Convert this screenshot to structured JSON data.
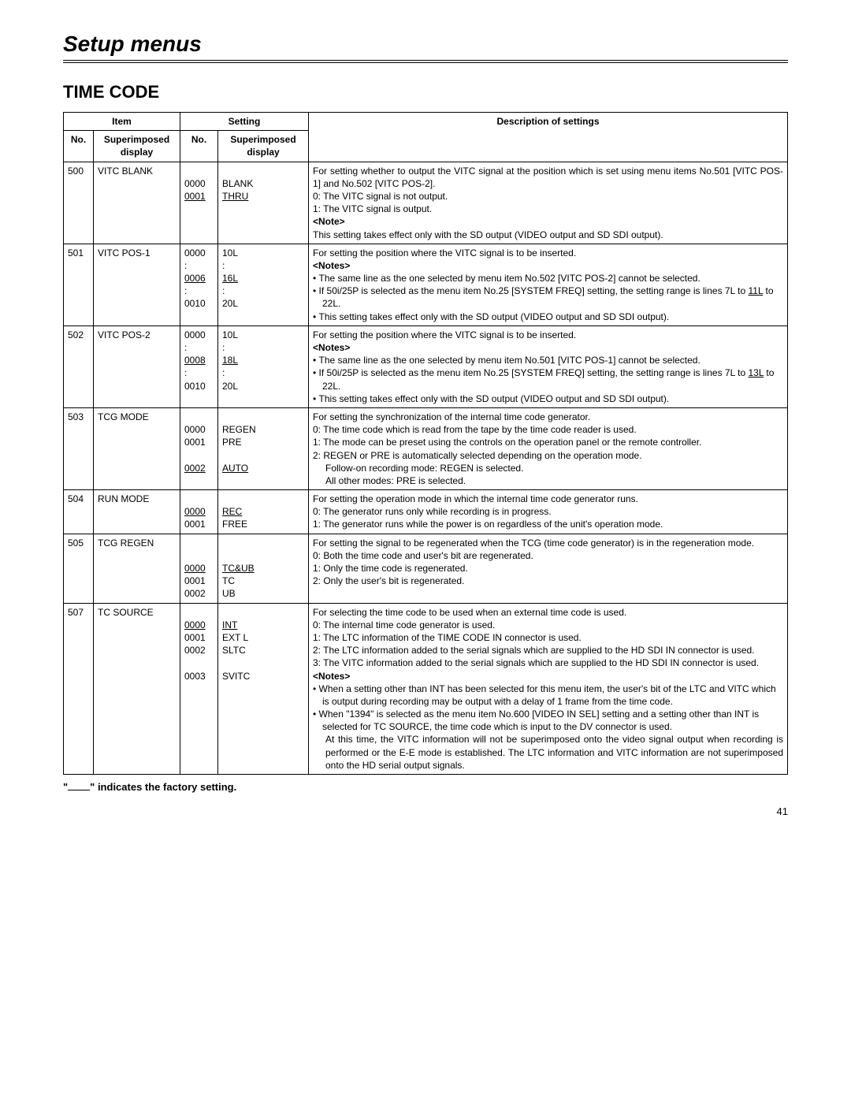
{
  "page_header": "Setup menus",
  "section_title": "TIME CODE",
  "thead": {
    "item": "Item",
    "setting": "Setting",
    "no": "No.",
    "super_disp": "Superimposed display",
    "desc": "Description of settings"
  },
  "rows": [
    {
      "no": "500",
      "item": "VITC BLANK",
      "settings_no": [
        {
          "t": ""
        },
        {
          "t": "0000"
        },
        {
          "t": "0001",
          "u": true
        }
      ],
      "settings_disp": [
        {
          "t": ""
        },
        {
          "t": "BLANK"
        },
        {
          "t": "THRU",
          "u": true
        }
      ],
      "desc_lines": [
        {
          "type": "plain",
          "t": "For setting whether to output the VITC signal at the position which is set using menu items No.501 [VITC POS-1] and No.502 [VITC POS-2].",
          "just": true
        },
        {
          "type": "num",
          "t": "0: The VITC signal is not output."
        },
        {
          "type": "num",
          "t": "1: The VITC signal is output."
        },
        {
          "type": "plain",
          "t": "<Note>",
          "bold": true
        },
        {
          "type": "plain",
          "t": "This setting takes effect only with the SD output (VIDEO output and SD SDI output).",
          "just": true
        }
      ]
    },
    {
      "no": "501",
      "item": "VITC POS-1",
      "settings_no": [
        {
          "t": "0000"
        },
        {
          "t": ":"
        },
        {
          "t": "0006",
          "u": true
        },
        {
          "t": ":"
        },
        {
          "t": "0010"
        }
      ],
      "settings_disp": [
        {
          "t": "10L"
        },
        {
          "t": ":"
        },
        {
          "t": "16L",
          "u": true
        },
        {
          "t": ":"
        },
        {
          "t": "20L"
        }
      ],
      "desc_lines": [
        {
          "type": "plain",
          "t": "For setting the position where the VITC signal is to be inserted."
        },
        {
          "type": "plain",
          "t": "<Notes>",
          "bold": true
        },
        {
          "type": "bullet",
          "t": "The same line as the one selected by menu item No.502 [VITC POS-2] cannot be selected."
        },
        {
          "type": "bullet",
          "html": "If 50i/25P is selected as the menu item No.25 [SYSTEM FREQ] setting, the setting range is lines 7L to <span class=\"u\">11L</span> to 22L."
        },
        {
          "type": "bullet",
          "t": "This setting takes effect only with the SD output (VIDEO output and SD SDI output)."
        }
      ]
    },
    {
      "no": "502",
      "item": "VITC POS-2",
      "settings_no": [
        {
          "t": "0000"
        },
        {
          "t": ":"
        },
        {
          "t": "0008",
          "u": true
        },
        {
          "t": ":"
        },
        {
          "t": "0010"
        }
      ],
      "settings_disp": [
        {
          "t": "10L"
        },
        {
          "t": ":"
        },
        {
          "t": "18L",
          "u": true
        },
        {
          "t": ":"
        },
        {
          "t": "20L"
        }
      ],
      "desc_lines": [
        {
          "type": "plain",
          "t": "For setting the position where the VITC signal is to be inserted."
        },
        {
          "type": "plain",
          "t": "<Notes>",
          "bold": true
        },
        {
          "type": "bullet",
          "t": "The same line as the one selected by menu item No.501 [VITC POS-1] cannot be selected."
        },
        {
          "type": "bullet",
          "html": "If 50i/25P is selected as the menu item No.25 [SYSTEM FREQ] setting, the setting range is lines 7L to <span class=\"u\">13L</span> to 22L."
        },
        {
          "type": "bullet",
          "t": "This setting takes effect only with the SD output (VIDEO output and SD SDI output)."
        }
      ]
    },
    {
      "no": "503",
      "item": "TCG MODE",
      "settings_no": [
        {
          "t": ""
        },
        {
          "t": "0000"
        },
        {
          "t": "0001"
        },
        {
          "t": ""
        },
        {
          "t": "0002",
          "u": true
        }
      ],
      "settings_disp": [
        {
          "t": ""
        },
        {
          "t": "REGEN"
        },
        {
          "t": "PRE"
        },
        {
          "t": ""
        },
        {
          "t": "AUTO",
          "u": true
        }
      ],
      "desc_lines": [
        {
          "type": "plain",
          "t": "For setting the synchronization of the internal time code generator."
        },
        {
          "type": "num",
          "t": "0: The time code which is read from the tape by the time code reader is used."
        },
        {
          "type": "num",
          "t": "1: The mode can be preset using the controls on the operation panel or the remote controller."
        },
        {
          "type": "num",
          "t": "2: REGEN or PRE is automatically selected depending on the operation mode."
        },
        {
          "type": "indent",
          "t": "Follow-on recording mode: REGEN is selected."
        },
        {
          "type": "indent",
          "t": "All other modes: PRE is selected."
        }
      ]
    },
    {
      "no": "504",
      "item": "RUN MODE",
      "settings_no": [
        {
          "t": ""
        },
        {
          "t": "0000",
          "u": true
        },
        {
          "t": "0001"
        }
      ],
      "settings_disp": [
        {
          "t": ""
        },
        {
          "t": "REC",
          "u": true
        },
        {
          "t": "FREE"
        }
      ],
      "desc_lines": [
        {
          "type": "plain",
          "t": "For setting the operation mode in which the internal time code generator runs."
        },
        {
          "type": "num",
          "t": "0: The generator runs only while recording is in progress."
        },
        {
          "type": "num",
          "t": "1: The generator runs while the power is on regardless of the unit's operation mode."
        }
      ]
    },
    {
      "no": "505",
      "item": "TCG REGEN",
      "settings_no": [
        {
          "t": ""
        },
        {
          "t": ""
        },
        {
          "t": "0000",
          "u": true
        },
        {
          "t": "0001"
        },
        {
          "t": "0002"
        }
      ],
      "settings_disp": [
        {
          "t": ""
        },
        {
          "t": ""
        },
        {
          "t": "TC&UB",
          "u": true
        },
        {
          "t": "TC"
        },
        {
          "t": "UB"
        }
      ],
      "desc_lines": [
        {
          "type": "plain",
          "t": "For setting the signal to be regenerated when the TCG (time code generator) is in the regeneration mode."
        },
        {
          "type": "num",
          "t": "0: Both the time code and user's bit are regenerated."
        },
        {
          "type": "num",
          "t": "1: Only the time code is regenerated."
        },
        {
          "type": "num",
          "t": "2: Only the user's bit is regenerated."
        }
      ]
    },
    {
      "no": "507",
      "item": "TC SOURCE",
      "settings_no": [
        {
          "t": ""
        },
        {
          "t": "0000",
          "u": true
        },
        {
          "t": "0001"
        },
        {
          "t": "0002"
        },
        {
          "t": ""
        },
        {
          "t": "0003"
        }
      ],
      "settings_disp": [
        {
          "t": ""
        },
        {
          "t": "INT",
          "u": true
        },
        {
          "t": "EXT L"
        },
        {
          "t": "SLTC"
        },
        {
          "t": ""
        },
        {
          "t": "SVITC"
        }
      ],
      "desc_lines": [
        {
          "type": "plain",
          "t": "For selecting the time code to be used when an external time code is used."
        },
        {
          "type": "num",
          "t": "0: The internal time code generator is used."
        },
        {
          "type": "num",
          "t": "1: The LTC information of the TIME CODE IN connector is used."
        },
        {
          "type": "num",
          "t": "2: The LTC information added to the serial signals which are supplied to the HD SDI IN connector is used."
        },
        {
          "type": "num",
          "t": "3: The VITC information added to the serial signals which are supplied to the HD SDI IN connector is used."
        },
        {
          "type": "plain",
          "t": "<Notes>",
          "bold": true
        },
        {
          "type": "bullet",
          "t": "When a setting other than INT has been selected for this menu item, the user's bit of the LTC and VITC which is output during recording may be output with a delay of 1 frame from the time code."
        },
        {
          "type": "bullet",
          "t": "When \"1394\" is selected as the menu item No.600 [VIDEO IN SEL] setting and a setting other than INT is selected for TC SOURCE, the time code which is input to the DV connector is used."
        },
        {
          "type": "indent",
          "t": "At this time, the VITC information will not be superimposed onto the video signal output when recording is performed or the E-E mode is established.  The LTC information and VITC information are not superimposed onto the HD serial output signals.",
          "just": true
        }
      ]
    }
  ],
  "footnote_prefix": "\"",
  "footnote_suffix": "\" indicates the factory setting.",
  "page_number": "41"
}
